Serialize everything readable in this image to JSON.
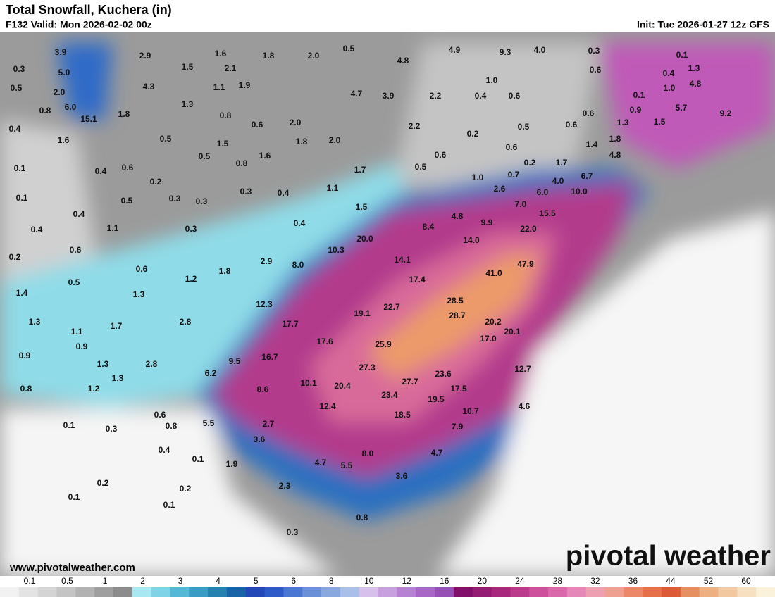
{
  "header": {
    "title": "Total Snowfall, Kuchera (in)",
    "valid": "F132 Valid: Mon 2026-02-02 00z",
    "init": "Init: Tue 2026-01-27 12z GFS"
  },
  "map": {
    "labels": [
      "3.9",
      "2.9",
      "1.6",
      "1.8",
      "2.0",
      "0.5",
      "4.9",
      "9.3",
      "4.0",
      "0.3",
      "0.1",
      "0.3",
      "5.0",
      "1.5",
      "2.1",
      "4.8",
      "0.6",
      "0.4",
      "1.3",
      "0.5",
      "2.0",
      "4.3",
      "1.1",
      "1.9",
      "1.0",
      "1.0",
      "4.8",
      "0.8",
      "6.0",
      "1.3",
      "4.7",
      "3.9",
      "2.2",
      "0.4",
      "0.6",
      "0.1",
      "15.1",
      "1.8",
      "0.8",
      "0.6",
      "2.0",
      "5.7",
      "0.9",
      "9.2",
      "0.4",
      "0.5",
      "1.5",
      "1.8",
      "2.0",
      "2.2",
      "0.2",
      "0.5",
      "0.6",
      "0.6",
      "1.3",
      "1.5",
      "1.6",
      "1.8",
      "4.8",
      "1.4",
      "0.5",
      "1.6",
      "0.6",
      "0.6",
      "0.1",
      "0.4",
      "0.6",
      "0.8",
      "1.7",
      "0.5",
      "0.2",
      "1.7",
      "6.7",
      "0.2",
      "1.0",
      "0.7",
      "4.0",
      "1.1",
      "0.3",
      "0.4",
      "0.1",
      "0.5",
      "0.3",
      "0.3",
      "2.6",
      "6.0",
      "10.0",
      "0.4",
      "1.5",
      "7.0",
      "15.5",
      "4.8",
      "0.4",
      "1.1",
      "0.3",
      "0.4",
      "8.4",
      "9.9",
      "22.0",
      "0.6",
      "20.0",
      "14.0",
      "10.3",
      "0.2",
      "2.9",
      "8.0",
      "14.1",
      "47.9",
      "0.6",
      "1.8",
      "41.0",
      "1.2",
      "17.4",
      "0.5",
      "1.4",
      "1.3",
      "12.3",
      "28.5",
      "22.7",
      "19.1",
      "28.7",
      "1.3",
      "2.8",
      "17.7",
      "20.2",
      "20.1",
      "1.1",
      "1.7",
      "17.0",
      "0.9",
      "0.9",
      "17.6",
      "25.9",
      "1.3",
      "2.8",
      "9.5",
      "16.7",
      "27.3",
      "23.6",
      "12.7",
      "6.2",
      "0.8",
      "1.3",
      "1.2",
      "10.1",
      "20.4",
      "27.7",
      "8.6",
      "17.5",
      "23.4",
      "19.5",
      "4.6",
      "12.4",
      "10.7",
      "0.6",
      "18.5",
      "0.1",
      "0.3",
      "0.8",
      "5.5",
      "2.7",
      "7.9",
      "0.4",
      "3.6",
      "8.0",
      "4.7",
      "0.1",
      "1.9",
      "4.7",
      "5.5",
      "0.2",
      "0.2",
      "3.6",
      "2.3",
      "0.1",
      "0.1",
      "0.8",
      "0.3"
    ]
  },
  "footer": {
    "url": "www.pivotalweather.com",
    "brand": "pivotal weather"
  },
  "colorbar": {
    "ticks": [
      "0.1",
      "0.5",
      "1",
      "2",
      "3",
      "4",
      "5",
      "6",
      "8",
      "10",
      "12",
      "16",
      "20",
      "24",
      "28",
      "32",
      "36",
      "44",
      "52",
      "60"
    ]
  }
}
